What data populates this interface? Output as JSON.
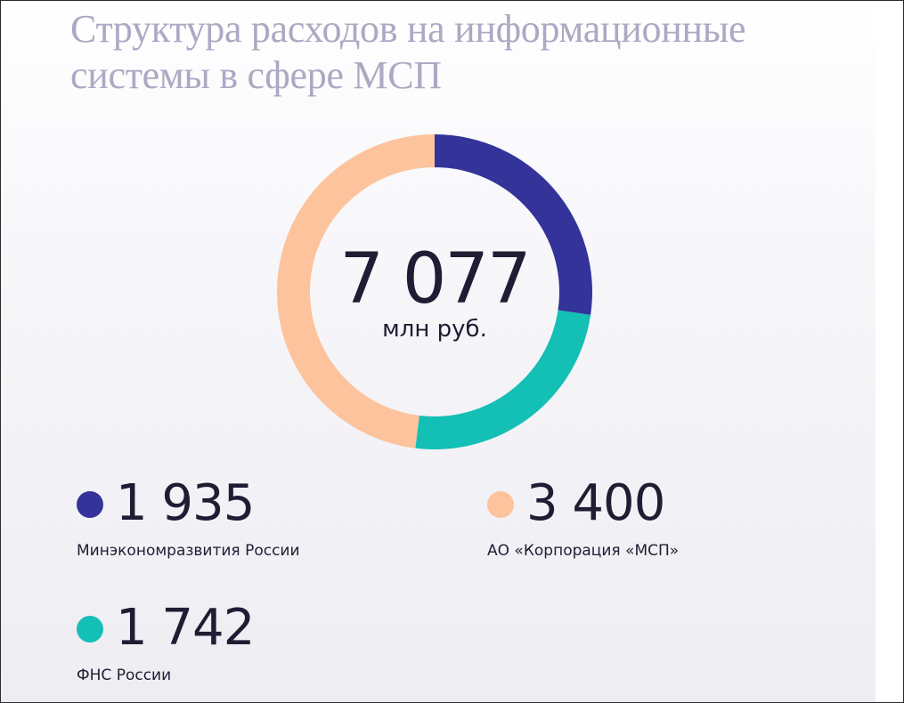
{
  "chart_data": {
    "type": "pie",
    "title_lines": [
      "Структура расходов на информационные",
      "системы в сфере МСП"
    ],
    "total": {
      "value": "7 077",
      "unit": "млн руб."
    },
    "slices": [
      {
        "label": "Минэкономразвития России",
        "value": 1935,
        "display": "1 935",
        "color": "#33339a"
      },
      {
        "label": "ФНС России",
        "value": 1742,
        "display": "1 742",
        "color": "#14bfb6"
      },
      {
        "label": "АО «Корпорация «МСП»",
        "value": 3400,
        "display": "3 400",
        "color": "#fcc39c"
      }
    ],
    "legend": [
      {
        "slice": 0
      },
      {
        "slice": 2
      },
      {
        "slice": 1
      }
    ],
    "start_angle_deg": 0,
    "direction": "clockwise",
    "donut": true
  }
}
